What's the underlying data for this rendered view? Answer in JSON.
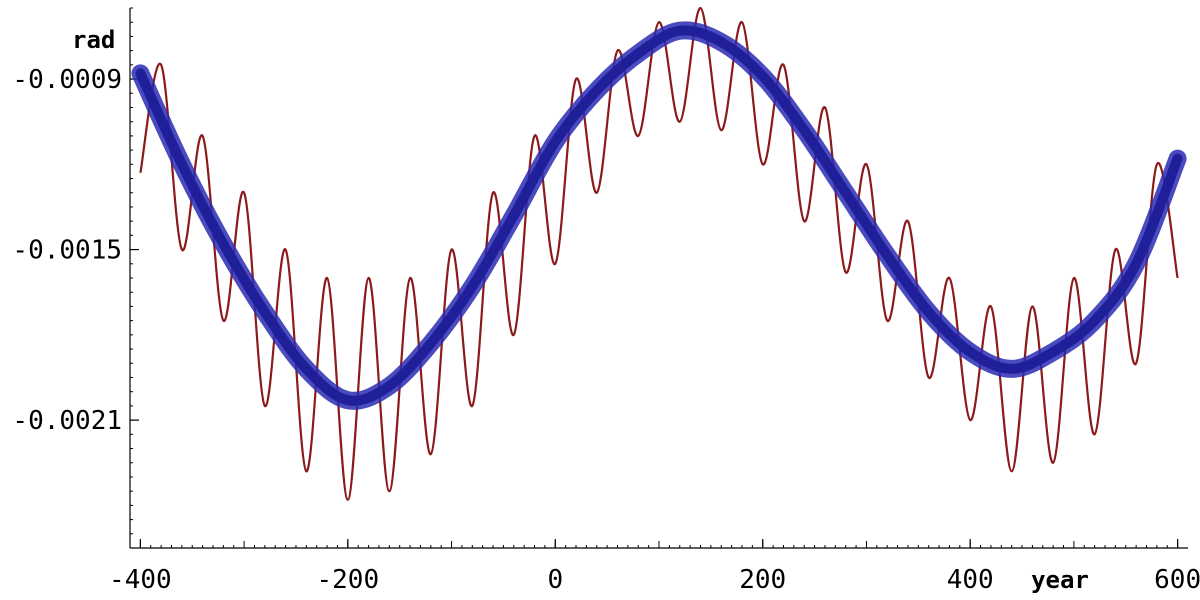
{
  "chart_data": {
    "type": "line",
    "title": "",
    "xlabel": "year",
    "ylabel": "rad",
    "xlim": [
      -410,
      610
    ],
    "ylim": [
      -0.00255,
      -0.00065
    ],
    "x_ticks": [
      -400,
      -200,
      0,
      200,
      400,
      600
    ],
    "x_tick_labels": [
      "-400",
      "-200",
      "0",
      "200",
      "400",
      "600"
    ],
    "y_ticks": [
      -0.0009,
      -0.0015,
      -0.0021
    ],
    "y_tick_labels": [
      "-0.0009",
      "-0.0015",
      "-0.0021"
    ],
    "grid": false,
    "legend": "none",
    "x_range": [
      -400,
      600
    ],
    "series": [
      {
        "color": "#8b1a1a",
        "style": "oscillating",
        "points": [
          [
            -400,
            -0.00123
          ],
          [
            -380,
            -0.00085
          ],
          [
            -360,
            -0.0015
          ],
          [
            -340,
            -0.0011
          ],
          [
            -320,
            -0.00175
          ],
          [
            -300,
            -0.0013
          ],
          [
            -280,
            -0.00205
          ],
          [
            -260,
            -0.0015
          ],
          [
            -240,
            -0.00228
          ],
          [
            -220,
            -0.0016
          ],
          [
            -200,
            -0.00238
          ],
          [
            -180,
            -0.0016
          ],
          [
            -160,
            -0.00235
          ],
          [
            -140,
            -0.0016
          ],
          [
            -120,
            -0.00222
          ],
          [
            -100,
            -0.0015
          ],
          [
            -80,
            -0.00205
          ],
          [
            -60,
            -0.0013
          ],
          [
            -40,
            -0.0018
          ],
          [
            -20,
            -0.0011
          ],
          [
            0,
            -0.00155
          ],
          [
            20,
            -0.0009
          ],
          [
            40,
            -0.0013
          ],
          [
            60,
            -0.0008
          ],
          [
            80,
            -0.0011
          ],
          [
            100,
            -0.0007
          ],
          [
            120,
            -0.00105
          ],
          [
            140,
            -0.00065
          ],
          [
            160,
            -0.00108
          ],
          [
            180,
            -0.0007
          ],
          [
            200,
            -0.0012
          ],
          [
            220,
            -0.00085
          ],
          [
            240,
            -0.0014
          ],
          [
            260,
            -0.001
          ],
          [
            280,
            -0.00158
          ],
          [
            300,
            -0.0012
          ],
          [
            320,
            -0.00175
          ],
          [
            340,
            -0.0014
          ],
          [
            360,
            -0.00195
          ],
          [
            380,
            -0.0016
          ],
          [
            400,
            -0.0021
          ],
          [
            420,
            -0.0017
          ],
          [
            440,
            -0.00228
          ],
          [
            460,
            -0.0017
          ],
          [
            480,
            -0.00225
          ],
          [
            500,
            -0.0016
          ],
          [
            520,
            -0.00215
          ],
          [
            540,
            -0.0015
          ],
          [
            560,
            -0.0019
          ],
          [
            580,
            -0.0012
          ],
          [
            600,
            -0.0016
          ]
        ]
      },
      {
        "color": "#1f1f99",
        "style": "thick",
        "points": [
          [
            -400,
            -0.00088
          ],
          [
            -360,
            -0.0012
          ],
          [
            -320,
            -0.00148
          ],
          [
            -280,
            -0.00172
          ],
          [
            -240,
            -0.00192
          ],
          [
            -200,
            -0.00203
          ],
          [
            -160,
            -0.00198
          ],
          [
            -120,
            -0.00183
          ],
          [
            -80,
            -0.00163
          ],
          [
            -40,
            -0.00138
          ],
          [
            0,
            -0.00112
          ],
          [
            40,
            -0.00094
          ],
          [
            80,
            -0.00081
          ],
          [
            120,
            -0.00073
          ],
          [
            160,
            -0.00077
          ],
          [
            200,
            -0.00089
          ],
          [
            240,
            -0.00108
          ],
          [
            280,
            -0.0013
          ],
          [
            320,
            -0.00152
          ],
          [
            360,
            -0.00172
          ],
          [
            400,
            -0.00186
          ],
          [
            440,
            -0.00192
          ],
          [
            480,
            -0.00186
          ],
          [
            520,
            -0.00175
          ],
          [
            560,
            -0.00155
          ],
          [
            600,
            -0.00118
          ]
        ]
      }
    ]
  }
}
